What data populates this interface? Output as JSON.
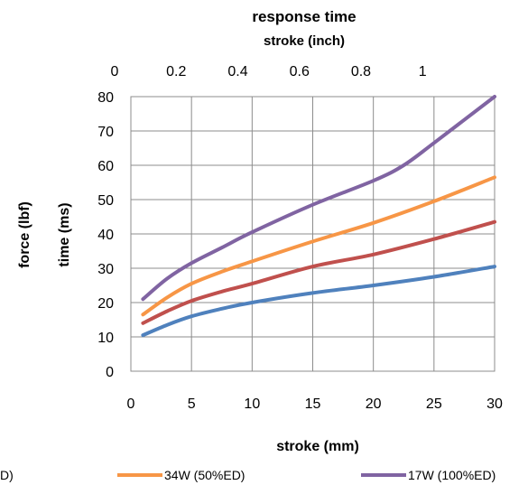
{
  "chart_data": {
    "type": "line",
    "title": "response time",
    "top_axis": {
      "label": "stroke (inch)",
      "ticks": [
        0,
        0.2,
        0.4,
        0.6,
        0.8,
        1
      ],
      "tick_labels": [
        "0",
        "0.2",
        "0.4",
        "0.6",
        "0.8",
        "1"
      ],
      "range": [
        0,
        1.1811
      ]
    },
    "x_axis": {
      "label": "stroke (mm)",
      "ticks": [
        0,
        5,
        10,
        15,
        20,
        25,
        30
      ],
      "tick_labels": [
        "0",
        "5",
        "10",
        "15",
        "20",
        "25",
        "30"
      ],
      "range": [
        0,
        30
      ]
    },
    "y_axis": {
      "label": "time (ms)",
      "outer_label": "force (lbf)",
      "ticks": [
        0,
        10,
        20,
        30,
        40,
        50,
        60,
        70,
        80
      ],
      "tick_labels": [
        "0",
        "10",
        "20",
        "30",
        "40",
        "50",
        "60",
        "70",
        "80"
      ],
      "range": [
        0,
        80
      ]
    },
    "grid": true,
    "legend": "bottom",
    "series": [
      {
        "name": "D)",
        "color": "#4f81bd",
        "x": [
          1,
          3,
          5,
          7.5,
          10,
          15,
          20,
          25,
          30
        ],
        "y": [
          10.5,
          13.5,
          16,
          18.2,
          20,
          22.8,
          25,
          27.5,
          30.5
        ]
      },
      {
        "color": "#c0504d",
        "x": [
          1,
          3,
          5,
          7.5,
          10,
          15,
          20,
          25,
          30
        ],
        "y": [
          14,
          17.5,
          20.5,
          23.2,
          25.5,
          30.5,
          34,
          38.5,
          43.5
        ]
      },
      {
        "name": "34W (50%ED)",
        "color": "#f79646",
        "x": [
          1,
          3,
          5,
          7.5,
          10,
          15,
          20,
          25,
          30
        ],
        "y": [
          16.5,
          21.5,
          25.5,
          29,
          32,
          37.8,
          43.2,
          49.5,
          56.5
        ]
      },
      {
        "name": "17W (100%ED)",
        "color": "#8064a2",
        "x": [
          1,
          3,
          5,
          7.5,
          10,
          15,
          20,
          22.5,
          25,
          30
        ],
        "y": [
          21,
          27,
          31.5,
          36,
          40.5,
          48.5,
          55.5,
          60,
          66.5,
          80
        ]
      }
    ]
  }
}
